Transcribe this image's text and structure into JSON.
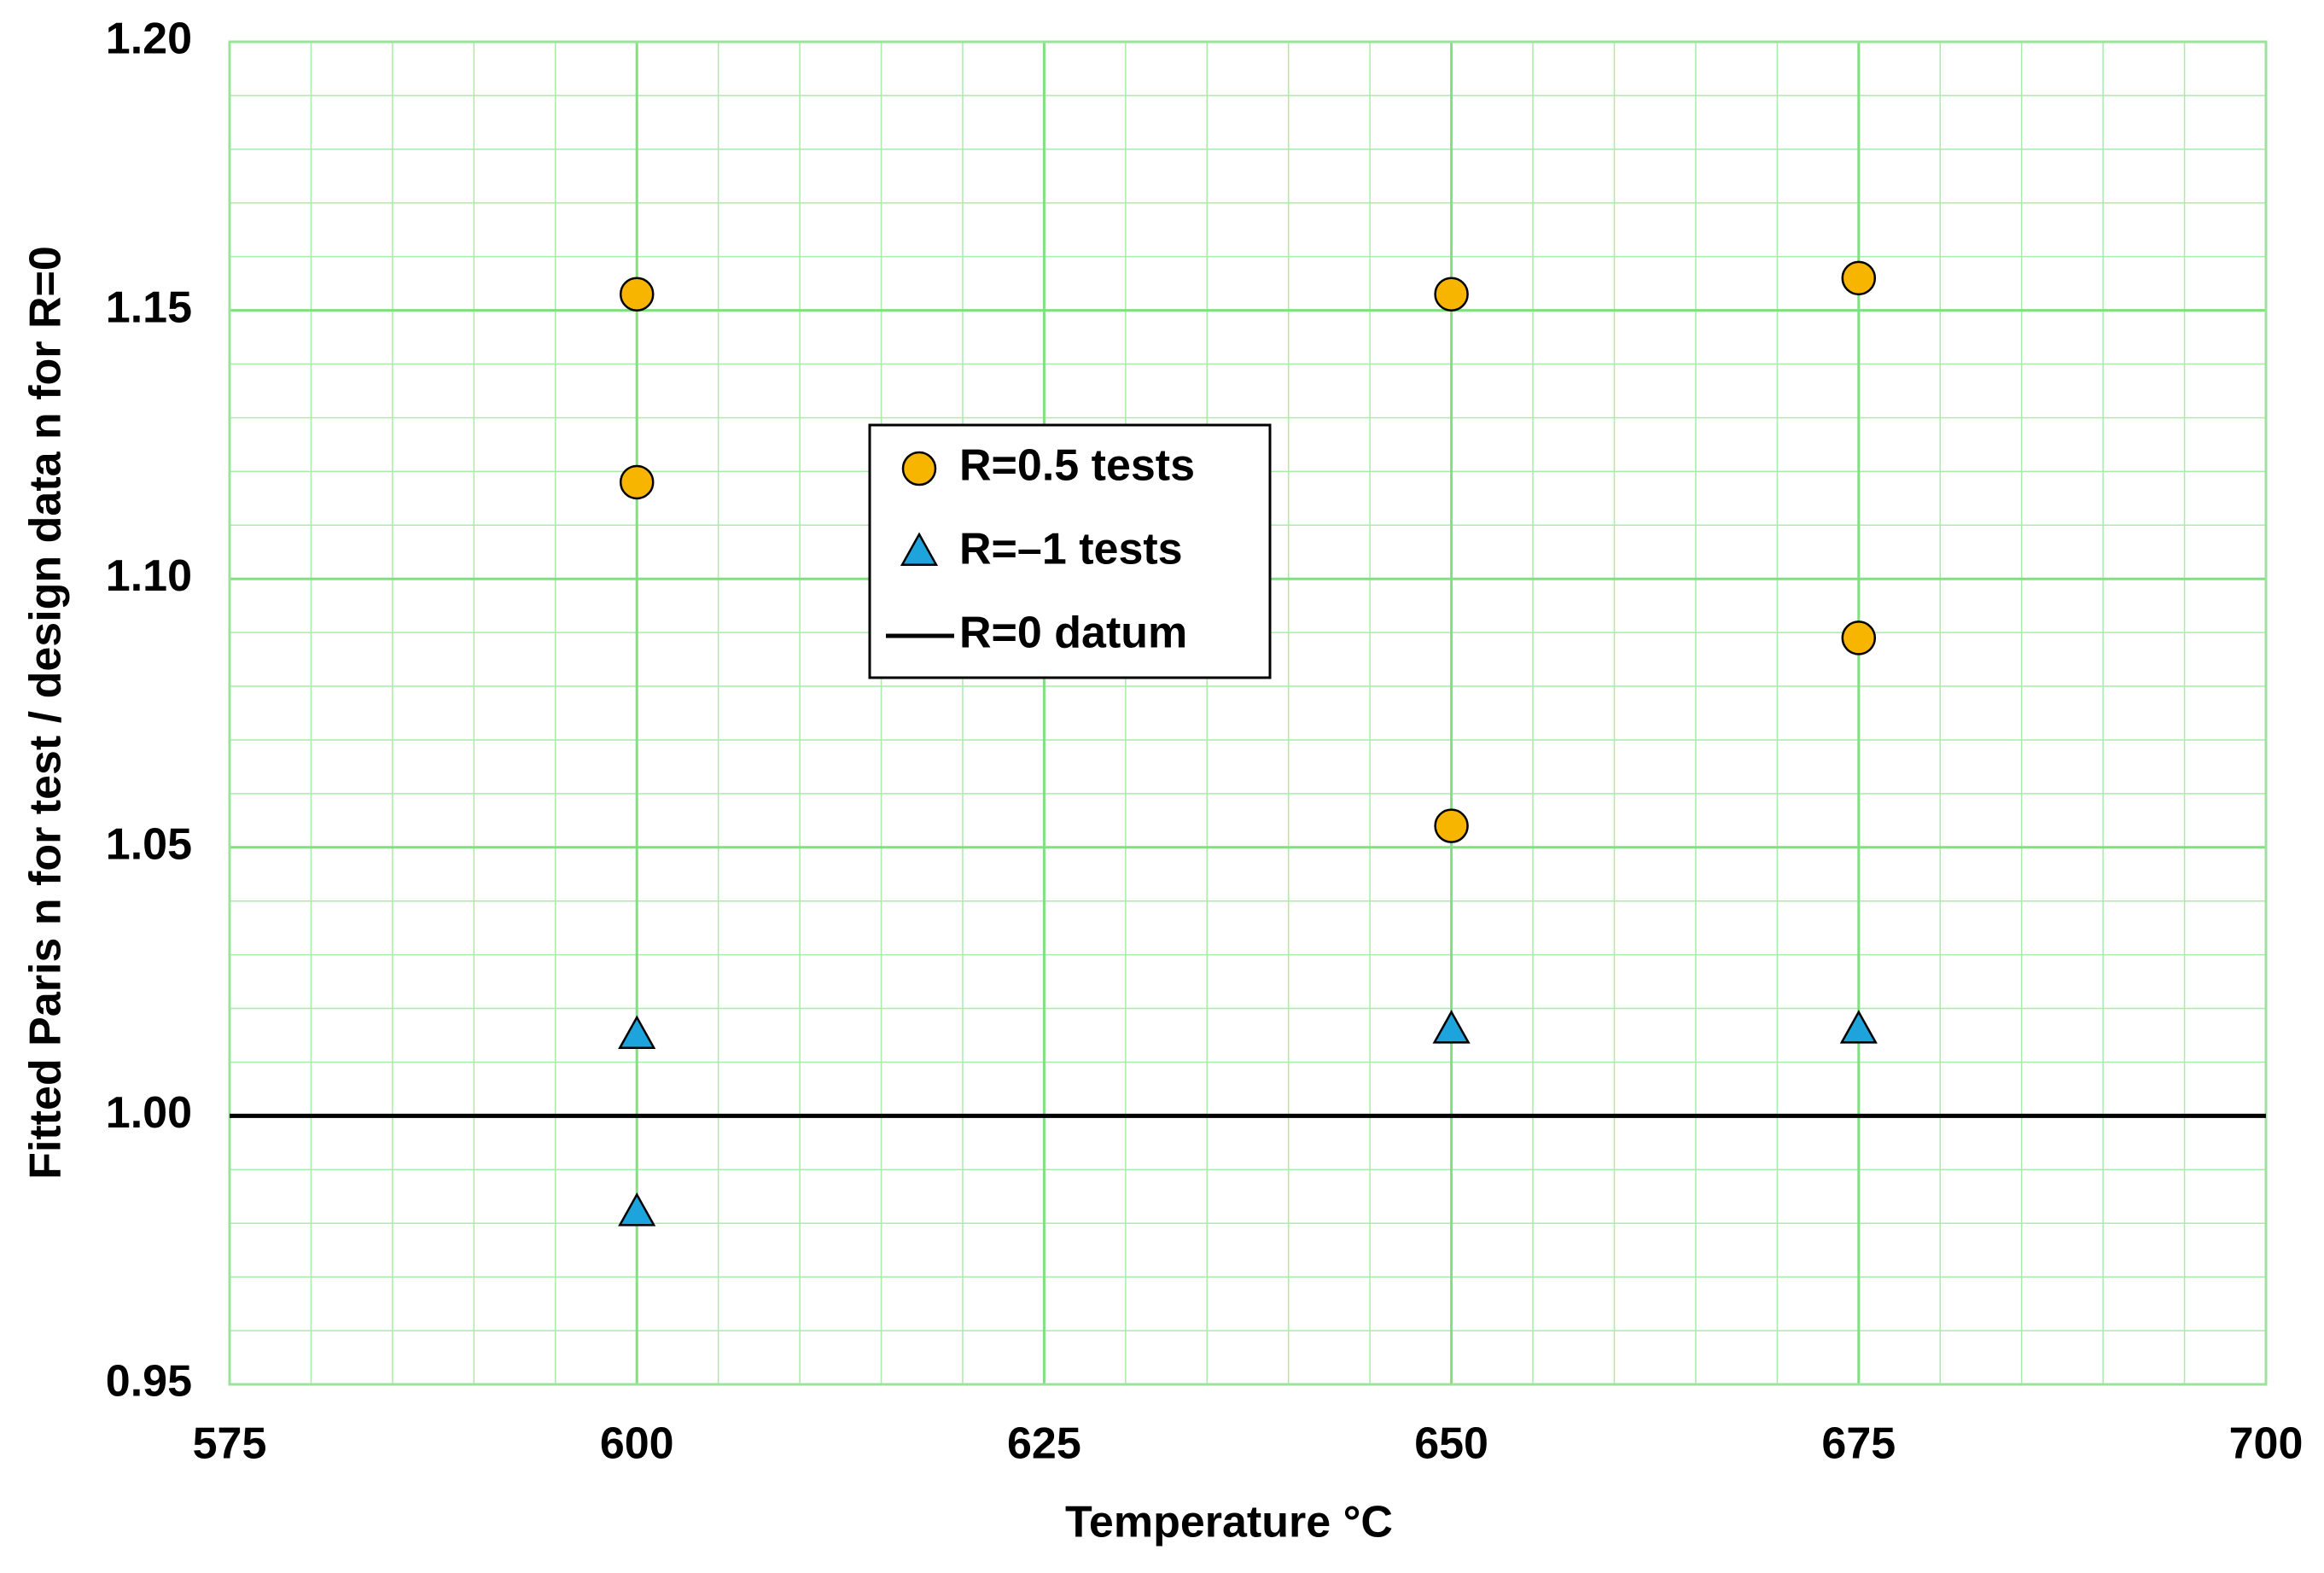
{
  "chart_data": {
    "type": "scatter",
    "x_label": "Temperature °C",
    "y_label": "Fitted Paris n for test / design data n for R=0",
    "xlim": [
      575,
      700
    ],
    "xticks": [
      575,
      600,
      625,
      650,
      675,
      700
    ],
    "ylim": [
      0.95,
      1.2
    ],
    "yticks": [
      0.95,
      {
        "value": 1.0,
        "label": "1.00"
      },
      1.05,
      {
        "value": 1.1,
        "label": "1.10"
      },
      1.15,
      {
        "value": 1.2,
        "label": "1.20"
      }
    ],
    "grid": true,
    "minor_grid": true,
    "grid_color": "#a8eca8",
    "legend_position": "center",
    "series": [
      {
        "name": "R=0.5 tests",
        "marker": "circle",
        "color": "#f7b500",
        "x": [
          600,
          600,
          650,
          650,
          675,
          675
        ],
        "values": [
          1.153,
          1.118,
          1.153,
          1.054,
          1.156,
          1.089
        ]
      },
      {
        "name": "R=–1 tests",
        "marker": "triangle",
        "color": "#1ea4dc",
        "x": [
          600,
          600,
          650,
          675
        ],
        "values": [
          1.015,
          0.982,
          1.016,
          1.016
        ]
      },
      {
        "name": "R=0 datum",
        "marker": "line",
        "color": "#000000",
        "x": [
          575,
          700
        ],
        "values": [
          1.0,
          1.0
        ]
      }
    ]
  }
}
